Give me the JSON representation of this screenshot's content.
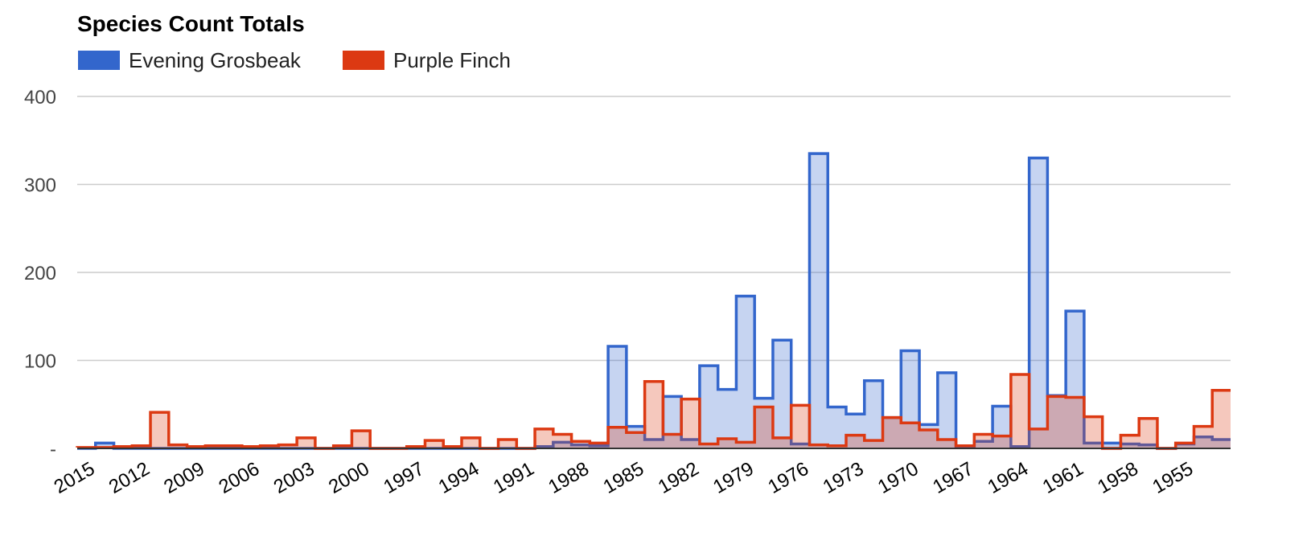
{
  "chart_data": {
    "type": "area",
    "title": "Species Count Totals",
    "legend_position": "top-left",
    "ylim": [
      0,
      400
    ],
    "yticks": [
      {
        "value": 0,
        "label": "-"
      },
      {
        "value": 100,
        "label": "100"
      },
      {
        "value": 200,
        "label": "200"
      },
      {
        "value": 300,
        "label": "300"
      },
      {
        "value": 400,
        "label": "400"
      }
    ],
    "x_tick_labels": [
      "2015",
      "2012",
      "2009",
      "2006",
      "2003",
      "2000",
      "1997",
      "1994",
      "1991",
      "1988",
      "1985",
      "1982",
      "1979",
      "1976",
      "1973",
      "1970",
      "1967",
      "1964",
      "1961",
      "1958",
      "1955"
    ],
    "x": [
      2015,
      2014,
      2013,
      2012,
      2011,
      2010,
      2009,
      2008,
      2007,
      2006,
      2005,
      2004,
      2003,
      2002,
      2001,
      2000,
      1999,
      1998,
      1997,
      1996,
      1995,
      1994,
      1993,
      1992,
      1991,
      1990,
      1989,
      1988,
      1987,
      1986,
      1985,
      1984,
      1983,
      1982,
      1981,
      1980,
      1979,
      1978,
      1977,
      1976,
      1975,
      1974,
      1973,
      1972,
      1971,
      1970,
      1969,
      1968,
      1967,
      1966,
      1965,
      1964,
      1963,
      1962,
      1961,
      1960,
      1959,
      1958,
      1957,
      1956,
      1955,
      1954,
      1953
    ],
    "series": [
      {
        "name": "Evening Grosbeak",
        "color": "#3366cc",
        "values": [
          0,
          6,
          0,
          0,
          0,
          0,
          0,
          0,
          0,
          0,
          0,
          0,
          0,
          0,
          0,
          0,
          0,
          0,
          0,
          0,
          0,
          0,
          0,
          0,
          0,
          2,
          7,
          4,
          3,
          116,
          25,
          10,
          59,
          10,
          94,
          67,
          173,
          57,
          123,
          5,
          335,
          47,
          39,
          77,
          35,
          111,
          27,
          86,
          2,
          8,
          48,
          2,
          330,
          60,
          156,
          6,
          6,
          5,
          4,
          0,
          5,
          13,
          10
        ]
      },
      {
        "name": "Purple Finch",
        "color": "#dc3912",
        "values": [
          1,
          1,
          2,
          3,
          41,
          4,
          2,
          3,
          3,
          2,
          3,
          4,
          12,
          0,
          3,
          20,
          0,
          0,
          2,
          9,
          2,
          12,
          0,
          10,
          0,
          22,
          16,
          8,
          6,
          24,
          18,
          76,
          16,
          56,
          5,
          11,
          7,
          47,
          12,
          49,
          4,
          3,
          15,
          9,
          35,
          29,
          21,
          10,
          3,
          16,
          14,
          84,
          22,
          59,
          58,
          36,
          0,
          15,
          34,
          0,
          6,
          25,
          66
        ]
      }
    ]
  }
}
